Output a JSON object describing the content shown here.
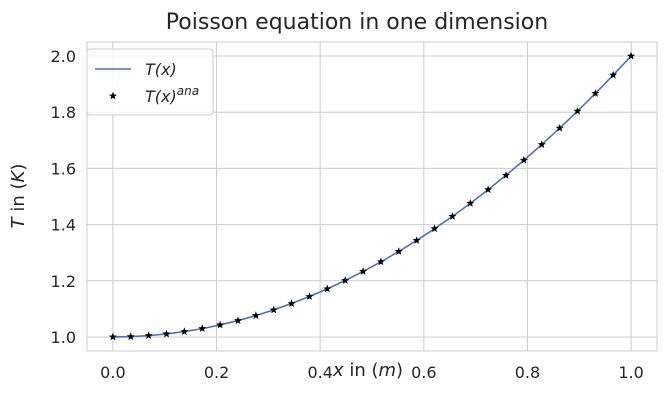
{
  "chart_data": {
    "type": "line",
    "title": "Poisson equation in one dimension",
    "xlabel": {
      "var": "x",
      "rest": " in (",
      "unit": "m",
      "close": ")"
    },
    "ylabel": {
      "var": "T",
      "rest": " in (",
      "unit": "K",
      "close": ")"
    },
    "xlim": [
      -0.05,
      1.05
    ],
    "ylim": [
      0.95,
      2.05
    ],
    "xticks": [
      0.0,
      0.2,
      0.4,
      0.6,
      0.8,
      1.0
    ],
    "xtick_labels": [
      "0.0",
      "0.2",
      "0.4",
      "0.6",
      "0.8",
      "1.0"
    ],
    "yticks": [
      1.0,
      1.2,
      1.4,
      1.6,
      1.8,
      2.0
    ],
    "ytick_labels": [
      "1.0",
      "1.2",
      "1.4",
      "1.6",
      "1.8",
      "2.0"
    ],
    "grid": true,
    "legend_position": "top-left",
    "legend": [
      {
        "base": "T(x)",
        "sup": ""
      },
      {
        "base": "T(x)",
        "sup": "ana"
      }
    ],
    "series": [
      {
        "name": "T(x)",
        "style": "line",
        "color": "#4c72b0",
        "x": [
          0.0,
          0.0345,
          0.069,
          0.1034,
          0.1379,
          0.1724,
          0.2069,
          0.2414,
          0.2759,
          0.3103,
          0.3448,
          0.3793,
          0.4138,
          0.4483,
          0.4828,
          0.5172,
          0.5517,
          0.5862,
          0.6207,
          0.6552,
          0.6897,
          0.7241,
          0.7586,
          0.7931,
          0.8276,
          0.8621,
          0.8966,
          0.931,
          0.9655,
          1.0
        ],
        "y": [
          1.0,
          1.0012,
          1.0048,
          1.0107,
          1.019,
          1.0297,
          1.0428,
          1.0583,
          1.0761,
          1.0963,
          1.1189,
          1.1439,
          1.1712,
          1.201,
          1.2331,
          1.2675,
          1.3044,
          1.3437,
          1.3853,
          1.4293,
          1.4756,
          1.5244,
          1.5755,
          1.629,
          1.6849,
          1.7432,
          1.8038,
          1.8668,
          1.9322,
          2.0
        ]
      },
      {
        "name": "T(x)^ana",
        "style": "markers",
        "marker": "star",
        "color": "#000000",
        "x": [
          0.0,
          0.0345,
          0.069,
          0.1034,
          0.1379,
          0.1724,
          0.2069,
          0.2414,
          0.2759,
          0.3103,
          0.3448,
          0.3793,
          0.4138,
          0.4483,
          0.4828,
          0.5172,
          0.5517,
          0.5862,
          0.6207,
          0.6552,
          0.6897,
          0.7241,
          0.7586,
          0.7931,
          0.8276,
          0.8621,
          0.8966,
          0.931,
          0.9655,
          1.0
        ],
        "y": [
          1.0,
          1.0012,
          1.0048,
          1.0107,
          1.019,
          1.0297,
          1.0428,
          1.0583,
          1.0761,
          1.0963,
          1.1189,
          1.1439,
          1.1712,
          1.201,
          1.2331,
          1.2675,
          1.3044,
          1.3437,
          1.3853,
          1.4293,
          1.4756,
          1.5244,
          1.5755,
          1.629,
          1.6849,
          1.7432,
          1.8038,
          1.8668,
          1.9322,
          2.0
        ]
      }
    ]
  }
}
